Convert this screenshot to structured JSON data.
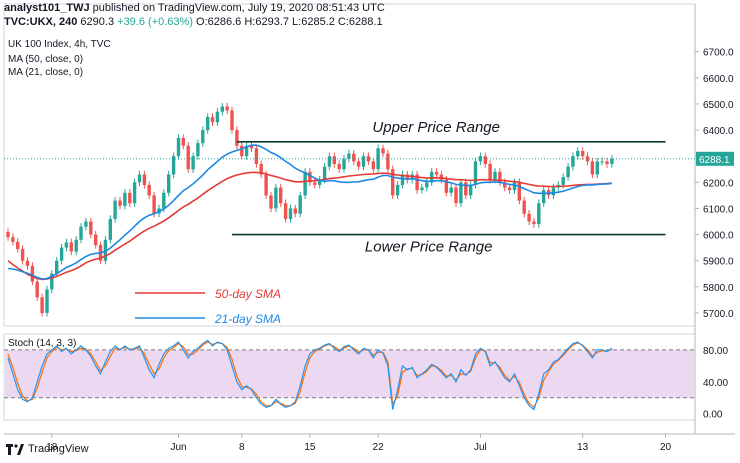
{
  "header": {
    "line1": {
      "author": "analyst101_TWJ",
      "published": "published on TradingView.com, July 19, 2020 08:51:43 UTC"
    },
    "line2": {
      "symbol": "TVC:UKX, 240",
      "last": "6290.3",
      "change": "+39.6 (+0.63%)",
      "ohlc": "O:6286.6 H:6293.7 L:6285.2 C:6288.1"
    }
  },
  "footer": {
    "brand": "TradingView"
  },
  "colors": {
    "up": "#26a69a",
    "down": "#ef5350",
    "sma50": "#e53935",
    "sma21": "#1e88e5",
    "stoch_k": "#2196f3",
    "stoch_d": "#ff6d00",
    "stoch_band": "#e1bee7",
    "range_line": "#0e3b2e"
  },
  "chart_data": [
    {
      "type": "candlestick",
      "title": "UK 100 Index, 4h, TVC",
      "legend": [
        "MA (50, close, 0)",
        "MA (21, close, 0)"
      ],
      "ylim": [
        5650,
        6760
      ],
      "y_ticks": [
        5700,
        5800,
        5900,
        6000,
        6100,
        6200,
        6300,
        6400,
        6500,
        6600,
        6700
      ],
      "x_ticks": [
        {
          "label": "18",
          "i": 9
        },
        {
          "label": "Jun",
          "i": 35
        },
        {
          "label": "8",
          "i": 48
        },
        {
          "label": "15",
          "i": 62
        },
        {
          "label": "22",
          "i": 76
        },
        {
          "label": "Jul",
          "i": 97
        },
        {
          "label": "13",
          "i": 118
        },
        {
          "label": "20",
          "i": 135
        }
      ],
      "last_price_label": "6288.1",
      "closes": [
        5990,
        5972,
        5945,
        5900,
        5880,
        5820,
        5760,
        5700,
        5790,
        5850,
        5900,
        5950,
        5970,
        5935,
        5980,
        6030,
        6050,
        6000,
        5960,
        5900,
        5980,
        6060,
        6130,
        6110,
        6160,
        6120,
        6200,
        6230,
        6190,
        6150,
        6080,
        6100,
        6160,
        6230,
        6300,
        6370,
        6340,
        6250,
        6300,
        6350,
        6400,
        6450,
        6430,
        6470,
        6490,
        6475,
        6400,
        6340,
        6300,
        6340,
        6330,
        6270,
        6230,
        6150,
        6100,
        6180,
        6120,
        6060,
        6100,
        6080,
        6150,
        6240,
        6200,
        6190,
        6210,
        6260,
        6300,
        6270,
        6250,
        6290,
        6310,
        6280,
        6260,
        6300,
        6280,
        6250,
        6330,
        6310,
        6250,
        6150,
        6190,
        6230,
        6210,
        6230,
        6170,
        6180,
        6200,
        6240,
        6230,
        6210,
        6160,
        6180,
        6120,
        6200,
        6150,
        6190,
        6280,
        6300,
        6270,
        6210,
        6240,
        6200,
        6180,
        6170,
        6200,
        6130,
        6080,
        6050,
        6040,
        6120,
        6170,
        6150,
        6180,
        6190,
        6220,
        6260,
        6300,
        6320,
        6300,
        6280,
        6230,
        6280,
        6280,
        6270,
        6290
      ],
      "series": [
        {
          "name": "50-day SMA",
          "values": [
            5900,
            5885,
            5872,
            5860,
            5848,
            5840,
            5832,
            5828,
            5830,
            5834,
            5840,
            5848,
            5856,
            5862,
            5870,
            5880,
            5892,
            5900,
            5906,
            5910,
            5918,
            5928,
            5940,
            5952,
            5964,
            5975,
            5988,
            6002,
            6014,
            6024,
            6032,
            6042,
            6052,
            6064,
            6078,
            6092,
            6106,
            6116,
            6128,
            6140,
            6154,
            6168,
            6180,
            6192,
            6204,
            6214,
            6222,
            6228,
            6232,
            6236,
            6238,
            6238,
            6236,
            6232,
            6226,
            6222,
            6216,
            6210,
            6206,
            6202,
            6202,
            6204,
            6205,
            6206,
            6208,
            6211,
            6214,
            6216,
            6218,
            6221,
            6224,
            6226,
            6228,
            6230,
            6231,
            6232,
            6234,
            6235,
            6234,
            6230,
            6228,
            6226,
            6224,
            6223,
            6220,
            6218,
            6217,
            6217,
            6217,
            6216,
            6214,
            6212,
            6210,
            6210,
            6208,
            6207,
            6208,
            6210,
            6210,
            6209,
            6209,
            6208,
            6206,
            6204,
            6203,
            6200,
            6196,
            6192,
            6188,
            6186,
            6185,
            6184,
            6184,
            6184,
            6185,
            6186,
            6188,
            6190,
            6191,
            6192,
            6192,
            6193,
            6194,
            6195,
            6197
          ]
        },
        {
          "name": "21-day SMA",
          "values": [
            5870,
            5868,
            5864,
            5858,
            5852,
            5844,
            5836,
            5830,
            5832,
            5840,
            5850,
            5862,
            5874,
            5882,
            5892,
            5904,
            5916,
            5924,
            5928,
            5930,
            5936,
            5948,
            5964,
            5980,
            5998,
            6014,
            6032,
            6050,
            6064,
            6074,
            6080,
            6088,
            6098,
            6112,
            6130,
            6150,
            6168,
            6180,
            6194,
            6210,
            6228,
            6248,
            6264,
            6280,
            6296,
            6308,
            6316,
            6322,
            6328,
            6336,
            6342,
            6342,
            6336,
            6326,
            6314,
            6306,
            6294,
            6280,
            6268,
            6254,
            6244,
            6236,
            6226,
            6216,
            6208,
            6204,
            6206,
            6206,
            6202,
            6200,
            6200,
            6201,
            6202,
            6206,
            6210,
            6212,
            6220,
            6226,
            6226,
            6220,
            6216,
            6214,
            6212,
            6214,
            6210,
            6206,
            6204,
            6204,
            6206,
            6206,
            6202,
            6198,
            6192,
            6190,
            6188,
            6188,
            6192,
            6198,
            6200,
            6200,
            6202,
            6200,
            6196,
            6192,
            6190,
            6184,
            6176,
            6168,
            6160,
            6158,
            6158,
            6158,
            6160,
            6162,
            6166,
            6172,
            6178,
            6184,
            6188,
            6190,
            6190,
            6192,
            6193,
            6194,
            6196
          ]
        }
      ],
      "annotations": [
        {
          "text": "Upper Price Range",
          "y": 6355,
          "x_start": 47,
          "x_end": 135
        },
        {
          "text": "Lower Price Range",
          "y": 6000,
          "x_start": 46,
          "x_end": 135
        }
      ],
      "ma_legend": [
        {
          "text": "50-day SMA",
          "series": "50-day SMA"
        },
        {
          "text": "21-day SMA",
          "series": "21-day SMA"
        }
      ]
    },
    {
      "type": "line",
      "title": "Stoch (14, 3, 3)",
      "ylim": [
        -8,
        100
      ],
      "y_ticks": [
        "80.00",
        "40.00",
        "0.00"
      ],
      "y_tick_values": [
        80,
        40,
        0
      ],
      "band": [
        20,
        80
      ],
      "series": [
        {
          "name": "%K",
          "values": [
            70,
            50,
            30,
            18,
            15,
            20,
            40,
            60,
            75,
            80,
            85,
            78,
            82,
            75,
            80,
            85,
            80,
            72,
            60,
            50,
            65,
            78,
            85,
            80,
            85,
            80,
            82,
            85,
            70,
            55,
            45,
            62,
            75,
            82,
            85,
            90,
            80,
            70,
            78,
            82,
            88,
            92,
            85,
            90,
            88,
            80,
            60,
            40,
            30,
            35,
            30,
            20,
            12,
            8,
            10,
            18,
            12,
            8,
            10,
            15,
            35,
            60,
            75,
            80,
            82,
            86,
            88,
            82,
            78,
            84,
            86,
            80,
            75,
            82,
            80,
            70,
            80,
            76,
            60,
            5,
            30,
            60,
            55,
            58,
            45,
            50,
            55,
            62,
            58,
            52,
            45,
            50,
            40,
            55,
            48,
            55,
            75,
            82,
            78,
            60,
            65,
            55,
            45,
            40,
            50,
            35,
            20,
            10,
            5,
            25,
            50,
            55,
            65,
            68,
            75,
            82,
            88,
            90,
            85,
            78,
            70,
            80,
            80,
            78,
            82
          ]
        },
        {
          "name": "%D",
          "values": [
            75,
            58,
            38,
            22,
            16,
            18,
            32,
            52,
            70,
            78,
            83,
            80,
            81,
            78,
            79,
            82,
            81,
            75,
            65,
            54,
            60,
            72,
            82,
            81,
            83,
            81,
            81,
            83,
            75,
            62,
            50,
            56,
            70,
            79,
            83,
            88,
            84,
            74,
            75,
            80,
            86,
            90,
            87,
            89,
            88,
            83,
            68,
            47,
            34,
            33,
            31,
            24,
            15,
            10,
            10,
            15,
            13,
            10,
            10,
            13,
            28,
            52,
            70,
            78,
            81,
            85,
            87,
            84,
            80,
            82,
            85,
            82,
            77,
            80,
            80,
            73,
            77,
            77,
            65,
            12,
            22,
            52,
            56,
            57,
            48,
            49,
            53,
            60,
            59,
            54,
            47,
            48,
            42,
            50,
            49,
            53,
            70,
            80,
            79,
            64,
            64,
            58,
            48,
            42,
            47,
            39,
            24,
            13,
            8,
            20,
            42,
            53,
            62,
            67,
            73,
            80,
            86,
            89,
            86,
            80,
            72,
            77,
            79,
            78,
            81
          ]
        }
      ]
    }
  ]
}
